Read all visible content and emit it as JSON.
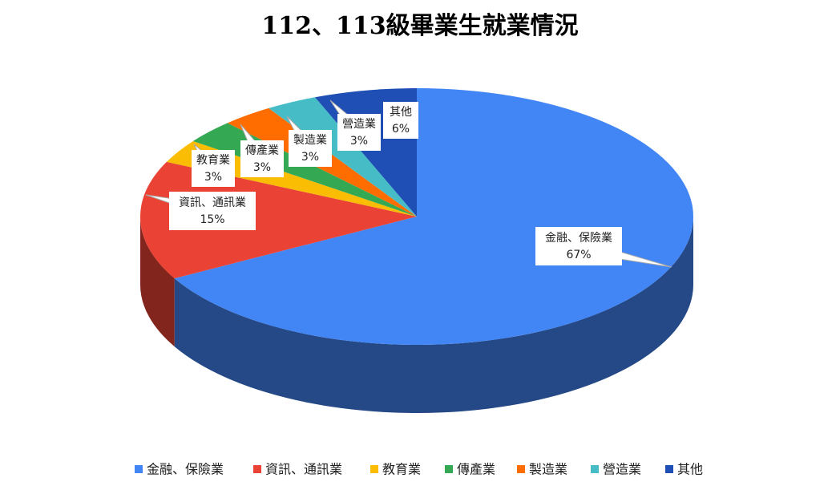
{
  "chart_data": {
    "type": "pie",
    "title": "112、113級畢業生就業情況",
    "categories": [
      "金融、保險業",
      "資訊、通訊業",
      "教育業",
      "傳產業",
      "製造業",
      "營造業",
      "其他"
    ],
    "values": [
      67,
      15,
      3,
      3,
      3,
      3,
      6
    ],
    "value_labels": [
      "67%",
      "15%",
      "3%",
      "3%",
      "3%",
      "3%",
      "6%"
    ],
    "colors": [
      "#4285f4",
      "#ea4335",
      "#fbbc04",
      "#34a853",
      "#ff6d01",
      "#46bdc6",
      "#1f4eb4"
    ]
  }
}
